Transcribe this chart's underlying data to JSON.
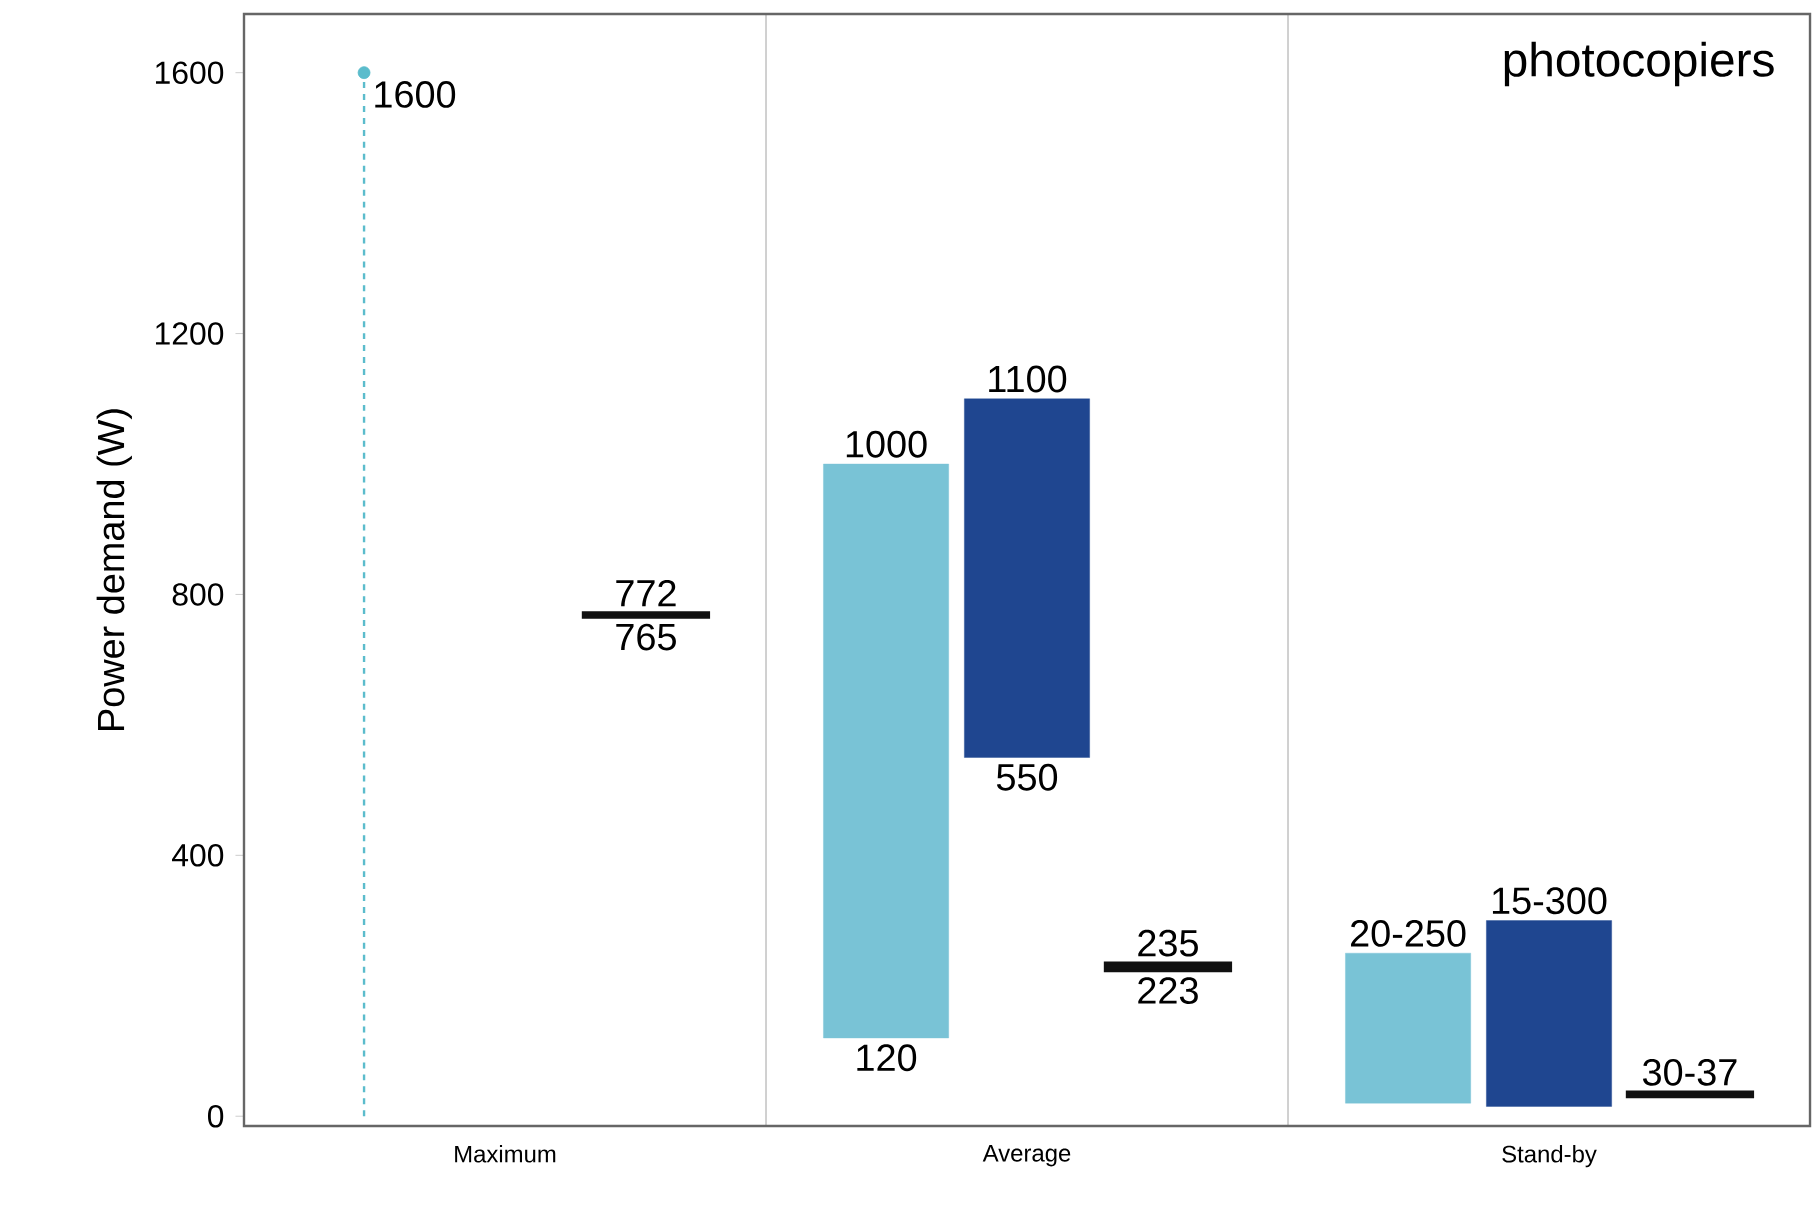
{
  "chart_data": {
    "type": "bar",
    "title": "photocopiers",
    "ylabel": "Power demand (W)",
    "categories": [
      "Maximum",
      "Average",
      "Stand-by"
    ],
    "series": [
      {
        "type": "lollipop",
        "color": "#5bbccc",
        "values": [
          1600,
          null,
          null
        ],
        "line_style": "dashed",
        "marker": "circle",
        "value_labels": [
          "1600",
          null,
          null
        ]
      },
      {
        "color": "#79c3d6",
        "base": [
          null,
          120,
          20
        ],
        "values": [
          null,
          880,
          230
        ],
        "value_labels": [
          null,
          "1000",
          "20-250"
        ]
      },
      {
        "color": "#1f4690",
        "base": [
          null,
          550,
          15
        ],
        "values": [
          null,
          550,
          285
        ],
        "value_labels": [
          null,
          "1100",
          "15-300"
        ]
      },
      {
        "color": "#111111",
        "base": [
          765,
          223,
          30
        ],
        "values": [
          7,
          12,
          7
        ],
        "value_labels": [
          "772",
          "235",
          "30-37"
        ]
      }
    ],
    "ylim": [
      -15,
      1690
    ],
    "yticks": [
      0,
      400,
      800,
      1200,
      1600
    ],
    "annotations": [
      "765",
      "120",
      "550",
      "223"
    ]
  }
}
